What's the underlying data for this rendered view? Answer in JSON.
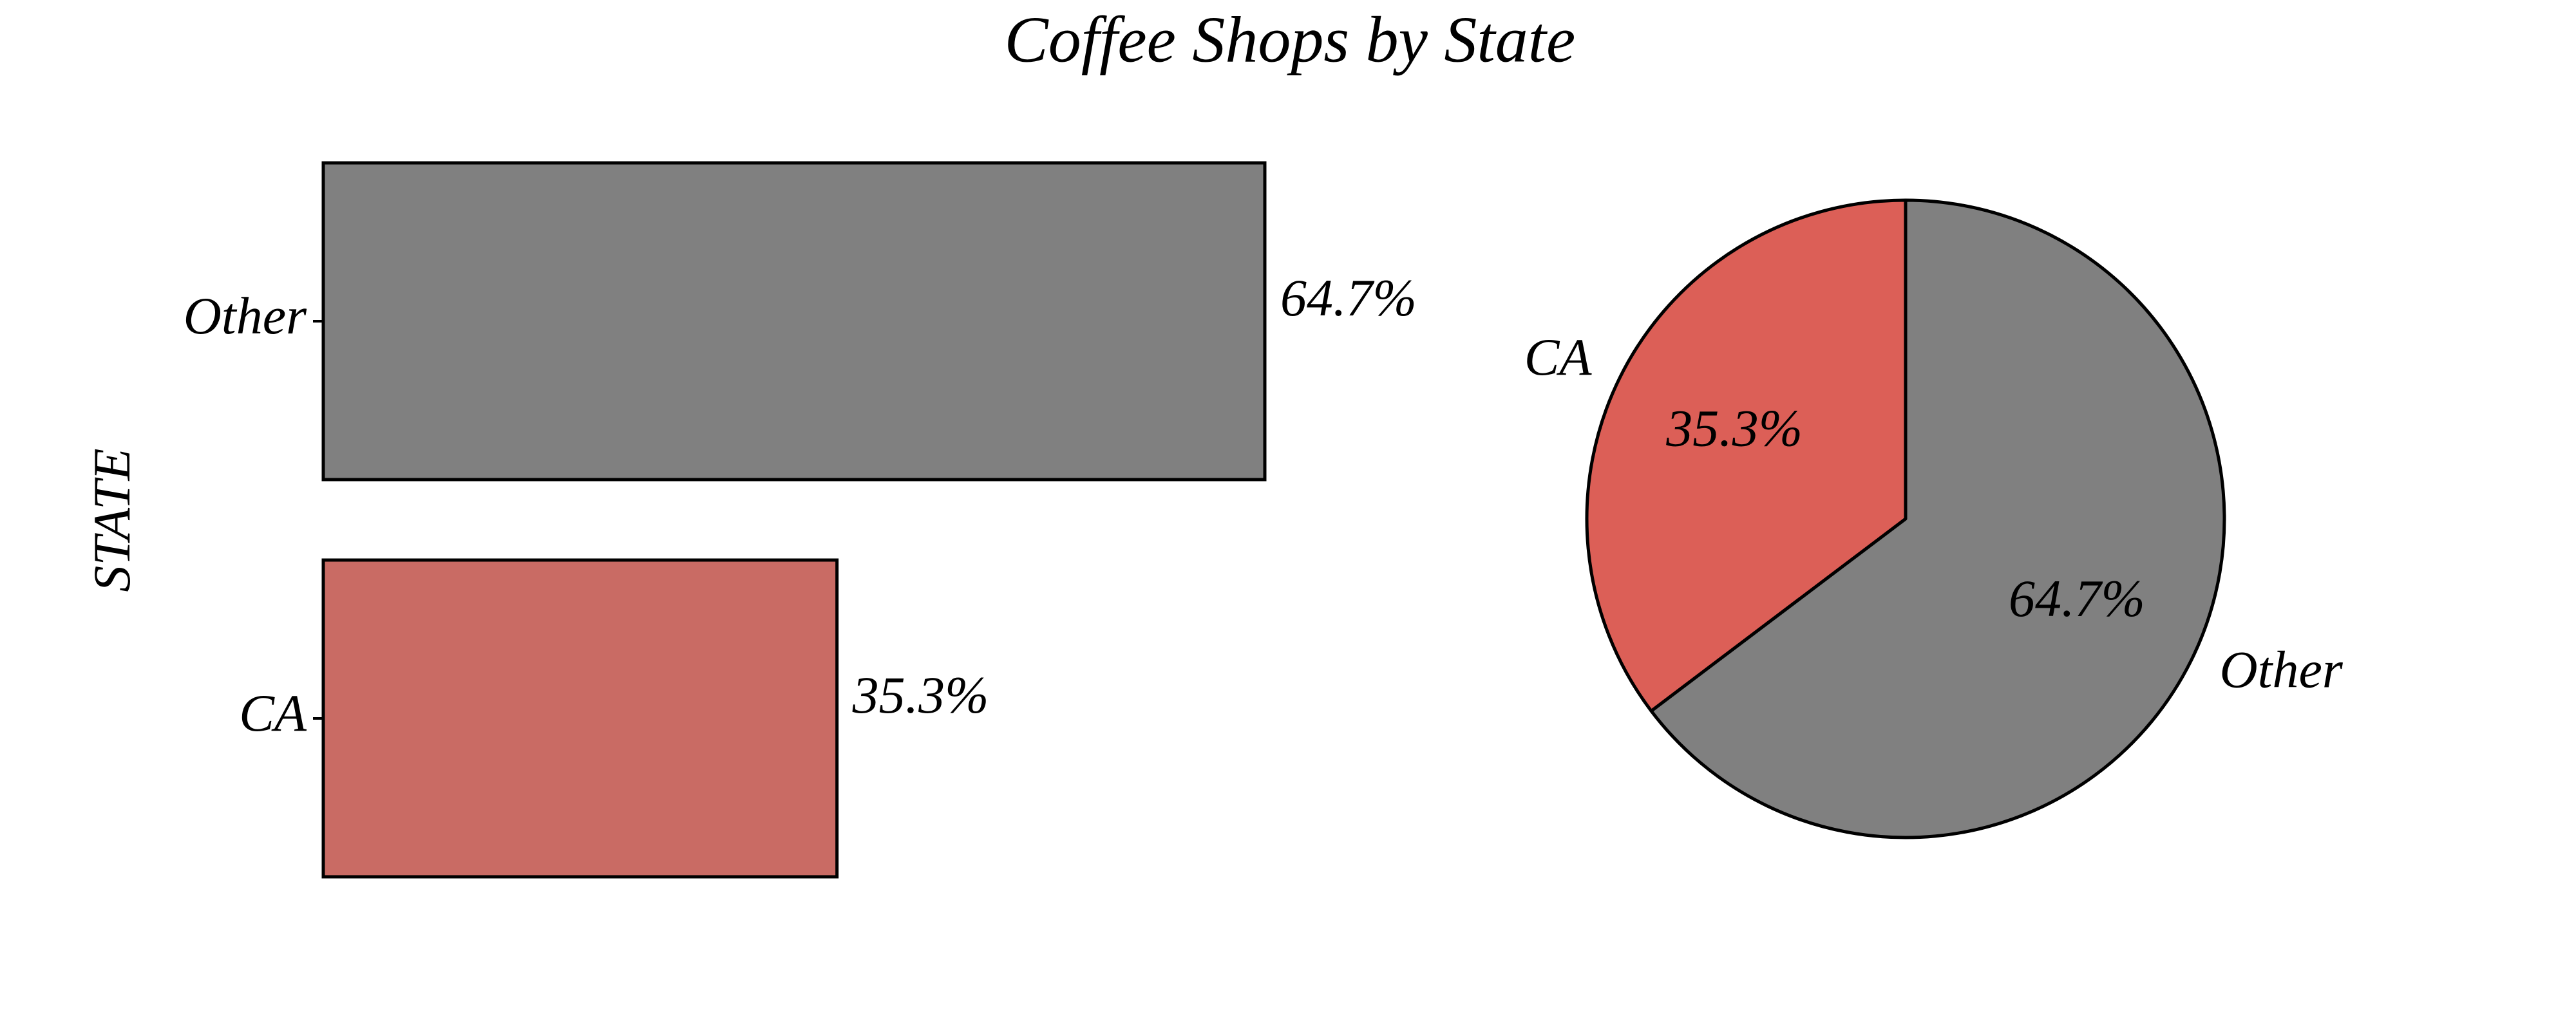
{
  "title": "Coffee Shops by State",
  "chart_data": [
    {
      "type": "barh",
      "ylabel": "STATE",
      "categories": [
        "Other",
        "CA"
      ],
      "values": [
        64.7,
        35.3
      ],
      "value_labels": [
        "64.7%",
        "35.3%"
      ],
      "colors": [
        "#808080",
        "#c96b64"
      ]
    },
    {
      "type": "pie",
      "categories": [
        "CA",
        "Other"
      ],
      "values": [
        35.3,
        64.7
      ],
      "value_labels": [
        "35.3%",
        "64.7%"
      ],
      "colors": [
        "#dc5f57",
        "#808080"
      ],
      "start_angle": 90,
      "counterclock": true
    }
  ]
}
